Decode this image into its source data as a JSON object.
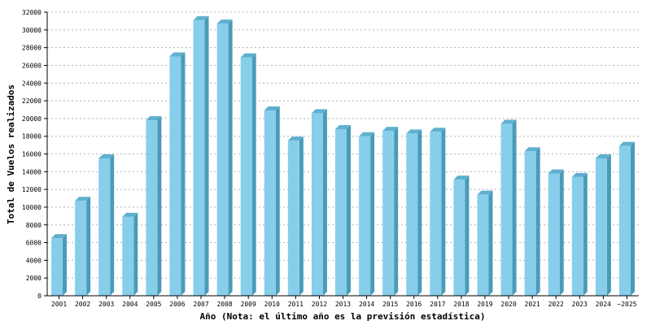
{
  "chart_data": {
    "type": "bar",
    "style": "3d",
    "xlabel": "Año (Nota: el último año es la previsión estadística)",
    "ylabel": "Total de Vuelos realizados",
    "categories": [
      "2001",
      "2002",
      "2003",
      "2004",
      "2005",
      "2006",
      "2007",
      "2008",
      "2009",
      "2010",
      "2011",
      "2012",
      "2013",
      "2014",
      "2015",
      "2016",
      "2017",
      "2018",
      "2019",
      "2020",
      "2021",
      "2022",
      "2023",
      "2024",
      "~2025"
    ],
    "values": [
      6500,
      10700,
      15500,
      8900,
      19800,
      27000,
      31100,
      30700,
      26900,
      20900,
      17500,
      20600,
      18800,
      18000,
      18600,
      18300,
      18500,
      13100,
      11400,
      19400,
      16300,
      13800,
      13400,
      15500,
      16900
    ],
    "ylim": [
      0,
      32000
    ],
    "yticks": [
      0,
      2000,
      4000,
      6000,
      8000,
      10000,
      12000,
      14000,
      16000,
      18000,
      20000,
      22000,
      24000,
      26000,
      28000,
      30000,
      32000
    ],
    "grid": true,
    "colors": {
      "bar_front": "#87ceeb",
      "bar_side": "#4a9bb8",
      "bar_top": "#5fb0cf",
      "grid": "#b4b4b4",
      "axis": "#000000"
    }
  }
}
